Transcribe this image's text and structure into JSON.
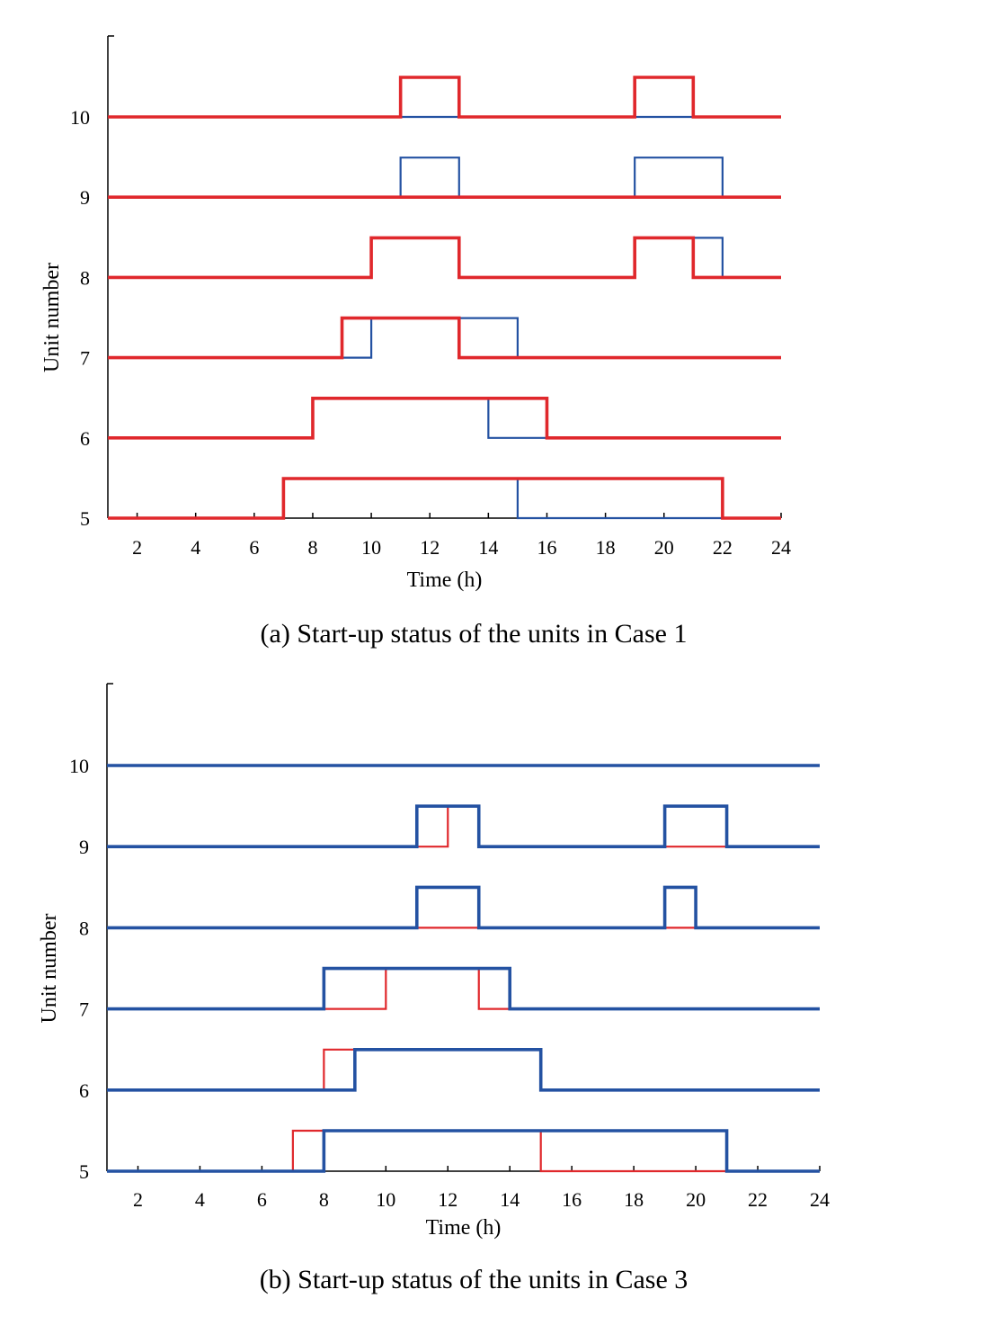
{
  "colors": {
    "blue": "#2452a2",
    "red": "#e0282c",
    "axis": "#000000"
  },
  "chart_data": [
    {
      "type": "line",
      "step": true,
      "title": "",
      "caption": "(a) Start-up status of the units in Case 1",
      "xlabel": "Time (h)",
      "ylabel": "Unit number",
      "xlim": [
        1,
        24
      ],
      "xticks": [
        "2",
        "4",
        "6",
        "8",
        "10",
        "12",
        "14",
        "16",
        "18",
        "20",
        "22",
        "24"
      ],
      "yticks": [
        "5",
        "6",
        "7",
        "8",
        "9",
        "10"
      ],
      "units": [
        5,
        6,
        7,
        8,
        9,
        10
      ],
      "series": [
        {
          "color": "blue",
          "width": "thin",
          "on_intervals": {
            "10": [],
            "9": [
              [
                11,
                13
              ],
              [
                19,
                22
              ]
            ],
            "8": [
              [
                10,
                13
              ],
              [
                19,
                22
              ]
            ],
            "7": [
              [
                10,
                15
              ]
            ],
            "6": [
              [
                8,
                14
              ]
            ],
            "5": [
              [
                7,
                15
              ]
            ]
          }
        },
        {
          "color": "red",
          "width": "thick",
          "on_intervals": {
            "10": [
              [
                11,
                13
              ],
              [
                19,
                21
              ]
            ],
            "9": [],
            "8": [
              [
                10,
                13
              ],
              [
                19,
                21
              ]
            ],
            "7": [
              [
                9,
                13
              ]
            ],
            "6": [
              [
                8,
                16
              ]
            ],
            "5": [
              [
                7,
                22
              ]
            ]
          }
        }
      ]
    },
    {
      "type": "line",
      "step": true,
      "title": "",
      "caption": "(b) Start-up status of the units in Case 3",
      "xlabel": "Time (h)",
      "ylabel": "Unit number",
      "xlim": [
        1,
        24
      ],
      "xticks": [
        "2",
        "4",
        "6",
        "8",
        "10",
        "12",
        "14",
        "16",
        "18",
        "20",
        "22",
        "24"
      ],
      "yticks": [
        "5",
        "6",
        "7",
        "8",
        "9",
        "10"
      ],
      "units": [
        5,
        6,
        7,
        8,
        9,
        10
      ],
      "series": [
        {
          "color": "red",
          "width": "thin",
          "on_intervals": {
            "10": [],
            "9": [
              [
                12,
                13
              ]
            ],
            "8": [],
            "7": [
              [
                10,
                13
              ]
            ],
            "6": [
              [
                8,
                15
              ]
            ],
            "5": [
              [
                7,
                15
              ]
            ]
          }
        },
        {
          "color": "blue",
          "width": "thick",
          "on_intervals": {
            "10": [],
            "9": [
              [
                11,
                13
              ],
              [
                19,
                21
              ]
            ],
            "8": [
              [
                11,
                13
              ],
              [
                19,
                20
              ]
            ],
            "7": [
              [
                8,
                14
              ]
            ],
            "6": [
              [
                9,
                15
              ]
            ],
            "5": [
              [
                8,
                21
              ]
            ]
          }
        }
      ]
    }
  ]
}
